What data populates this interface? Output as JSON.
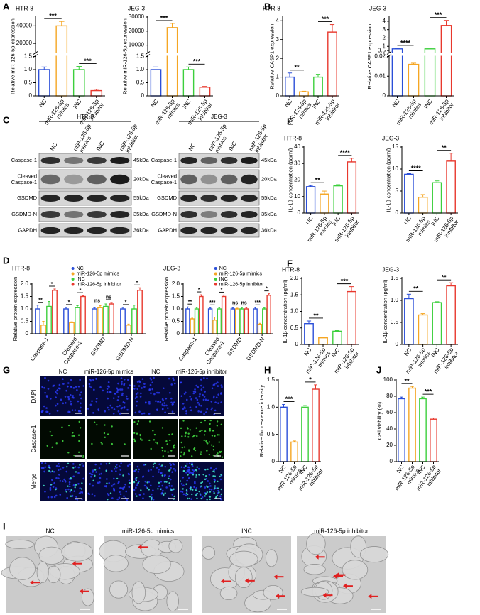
{
  "panel_labels": [
    "A",
    "B",
    "C",
    "D",
    "E",
    "F",
    "G",
    "H",
    "I",
    "J"
  ],
  "blot": {
    "cells": [
      "HTR-8",
      "JEG-3"
    ],
    "lanes": [
      "NC",
      "miR-126-5p mimics",
      "INC",
      "miR-126-5p inhibitor"
    ],
    "proteins": [
      "Caspase-1",
      "Cleaved Caspase-1",
      "GSDMD",
      "GSDMD-N",
      "GAPDH"
    ],
    "sizes": [
      "45kDa",
      "20kDa",
      "55kDa",
      "35kDa",
      "36kDa"
    ]
  },
  "fluorescence": {
    "columns": [
      "NC",
      "miR-126-5p mimics",
      "INC",
      "miR-126-5p inhibitor"
    ],
    "rows": [
      "DAPI",
      "Caspase-1",
      "Merge"
    ]
  },
  "micrographs": {
    "columns": [
      "NC",
      "miR-126-5p mimics",
      "INC",
      "miR-126-5p inhibitor"
    ]
  },
  "chart_data": [
    {
      "type": "bar",
      "title": "HTR-8",
      "y_label": "Relative miR-126-5p expression",
      "categories": [
        "NC",
        "miR-126-5p mimics",
        "INC",
        "miR-126-5p inhibitor"
      ],
      "values": [
        1.0,
        40000,
        1.0,
        0.2
      ],
      "errors": [
        0.1,
        5000,
        0.12,
        0.05
      ],
      "colors": [
        "#2b4fd8",
        "#f5a623",
        "#3ccf3c",
        "#e8382d"
      ],
      "broken_ylim": [
        [
          0,
          1.5
        ],
        [
          10000,
          50000
        ]
      ],
      "yticks": [
        0,
        0.5,
        {
          "value": 1,
          "label": "1.0"
        },
        1.5,
        20000,
        40000
      ],
      "annotations": [
        {
          "bars": [
            0,
            1
          ],
          "label": "***"
        },
        {
          "bars": [
            2,
            3
          ],
          "label": "***"
        }
      ]
    },
    {
      "type": "bar",
      "title": "JEG-3",
      "y_label": "Relative miR-126-5p expression",
      "categories": [
        "NC",
        "miR-126-5p mimics",
        "INC",
        "miR-126-5p inhibitor"
      ],
      "values": [
        1.0,
        22500,
        1.0,
        0.33
      ],
      "errors": [
        0.1,
        3000,
        0.1,
        0.03
      ],
      "colors": [
        "#2b4fd8",
        "#f5a623",
        "#3ccf3c",
        "#e8382d"
      ],
      "broken_ylim": [
        [
          0,
          1.5
        ],
        [
          5000,
          30000
        ]
      ],
      "yticks": [
        0,
        0.5,
        {
          "value": 1,
          "label": "1.0"
        },
        1.5,
        10000,
        20000,
        30000
      ],
      "annotations": [
        {
          "bars": [
            0,
            1
          ],
          "label": "***"
        },
        {
          "bars": [
            2,
            3
          ],
          "label": "***"
        }
      ]
    },
    {
      "type": "bar",
      "title": "HTR-8",
      "y_label": "Relative CASP1 expression",
      "categories": [
        "NC",
        "miR-126-5p mimics",
        "INC",
        "miR-126-5p inhibitor"
      ],
      "values": [
        1.0,
        0.22,
        1.0,
        3.4
      ],
      "errors": [
        0.22,
        0.03,
        0.15,
        0.4
      ],
      "colors": [
        "#2b4fd8",
        "#f5a623",
        "#3ccf3c",
        "#e8382d"
      ],
      "ylim": [
        0,
        4.2
      ],
      "yticks": [
        0,
        1,
        2,
        3,
        4
      ],
      "annotations": [
        {
          "bars": [
            0,
            1
          ],
          "label": "**"
        },
        {
          "bars": [
            2,
            3
          ],
          "label": "***"
        }
      ]
    },
    {
      "type": "bar",
      "title": "JEG-3",
      "y_label": "Relative CASP1 expression",
      "categories": [
        "NC",
        "miR-126-5p mimics",
        "INC",
        "miR-126-5p inhibitor"
      ],
      "values": [
        0.7,
        0.016,
        0.7,
        3.5
      ],
      "errors": [
        0.07,
        0.0006,
        0.1,
        0.6
      ],
      "colors": [
        "#2b4fd8",
        "#f5a623",
        "#3ccf3c",
        "#e8382d"
      ],
      "broken_ylim": [
        [
          0,
          0.02
        ],
        [
          0.3,
          4.5
        ]
      ],
      "yticks": [
        0,
        0.01,
        0.02,
        0.5,
        1,
        2,
        3,
        4
      ],
      "annotations": [
        {
          "bars": [
            0,
            1
          ],
          "label": "****"
        },
        {
          "bars": [
            2,
            3
          ],
          "label": "***"
        }
      ]
    },
    {
      "type": "bar",
      "title": "HTR-8",
      "y_label": "IL-18 concentration (pg/ml)",
      "categories": [
        "NC",
        "miR-126-5p mimics",
        "INC",
        "miR-126-5p inhibitor"
      ],
      "values": [
        16,
        11.5,
        16.5,
        31
      ],
      "errors": [
        0.7,
        1.8,
        0.7,
        2.2
      ],
      "colors": [
        "#2b4fd8",
        "#f5a623",
        "#3ccf3c",
        "#e8382d"
      ],
      "ylim": [
        0,
        40
      ],
      "yticks": [
        0,
        10,
        20,
        30,
        40
      ],
      "annotations": [
        {
          "bars": [
            0,
            1
          ],
          "label": "**"
        },
        {
          "bars": [
            2,
            3
          ],
          "label": "****"
        }
      ]
    },
    {
      "type": "bar",
      "title": "JEG-3",
      "y_label": "IL-18 concentration (pg/ml)",
      "categories": [
        "NC",
        "miR-126-5p mimics",
        "INC",
        "miR-126-5p inhibitor"
      ],
      "values": [
        8.8,
        3.6,
        6.9,
        11.8
      ],
      "errors": [
        0.15,
        0.6,
        0.4,
        1.8
      ],
      "colors": [
        "#2b4fd8",
        "#f5a623",
        "#3ccf3c",
        "#e8382d"
      ],
      "ylim": [
        0,
        15
      ],
      "yticks": [
        0,
        5,
        10,
        15
      ],
      "annotations": [
        {
          "bars": [
            0,
            1
          ],
          "label": "****"
        },
        {
          "bars": [
            2,
            3
          ],
          "label": "**"
        }
      ]
    },
    {
      "type": "grouped_bar",
      "title": "HTR-8",
      "y_label": "Relative protein expression",
      "categories": [
        "Caspase-1",
        "Cleaved Caspase-1",
        "GSDMD",
        "GSDMD-N"
      ],
      "series": [
        {
          "name": "NC",
          "color": "#2b4fd8",
          "values": [
            1.0,
            1.0,
            1.0,
            1.0
          ],
          "errors": [
            0.15,
            0.06,
            0.05,
            0.06
          ]
        },
        {
          "name": "miR-126-5p mimics",
          "color": "#f5a623",
          "values": [
            0.35,
            0.45,
            1.05,
            0.35
          ],
          "errors": [
            0.15,
            0.03,
            0.08,
            0.04
          ]
        },
        {
          "name": "INC",
          "color": "#3ccf3c",
          "values": [
            1.1,
            1.05,
            1.1,
            1.0
          ],
          "errors": [
            0.2,
            0.08,
            0.1,
            0.15
          ]
        },
        {
          "name": "miR-126-5p inhibitor",
          "color": "#e8382d",
          "values": [
            1.75,
            1.5,
            1.2,
            1.75
          ],
          "errors": [
            0.05,
            0.04,
            0.06,
            0.1
          ]
        }
      ],
      "ylim": [
        0,
        2.0
      ],
      "yticks": [
        0,
        0.5,
        {
          "value": 1,
          "label": "1.0"
        },
        1.5,
        {
          "value": 2,
          "label": "2.0"
        }
      ],
      "annotations": [
        {
          "category": 0,
          "bars": [
            0,
            1
          ],
          "label": "**"
        },
        {
          "category": 0,
          "bars": [
            2,
            3
          ],
          "label": "*"
        },
        {
          "category": 1,
          "bars": [
            0,
            1
          ],
          "label": "*"
        },
        {
          "category": 1,
          "bars": [
            2,
            3
          ],
          "label": "*"
        },
        {
          "category": 2,
          "bars": [
            0,
            1
          ],
          "label": "ns"
        },
        {
          "category": 2,
          "bars": [
            2,
            3
          ],
          "label": "ns"
        },
        {
          "category": 3,
          "bars": [
            0,
            1
          ],
          "label": "*"
        },
        {
          "category": 3,
          "bars": [
            2,
            3
          ],
          "label": "*"
        }
      ]
    },
    {
      "type": "grouped_bar",
      "title": "JEG-3",
      "y_label": "Relative protein expression",
      "categories": [
        "Caspase-1",
        "Cleaved Caspase-1",
        "GSDMD",
        "GSDMD-N"
      ],
      "series": [
        {
          "name": "NC",
          "color": "#2b4fd8",
          "values": [
            1.0,
            1.0,
            1.0,
            1.0
          ],
          "errors": [
            0.08,
            0.05,
            0.04,
            0.05
          ]
        },
        {
          "name": "miR-126-5p mimics",
          "color": "#f5a623",
          "values": [
            0.6,
            0.55,
            1.0,
            0.38
          ],
          "errors": [
            0.03,
            0.12,
            0.03,
            0.04
          ]
        },
        {
          "name": "INC",
          "color": "#3ccf3c",
          "values": [
            1.0,
            1.0,
            1.0,
            1.0
          ],
          "errors": [
            0.05,
            0.04,
            0.04,
            0.04
          ]
        },
        {
          "name": "miR-126-5p inhibitor",
          "color": "#e8382d",
          "values": [
            1.5,
            1.5,
            1.0,
            1.55
          ],
          "errors": [
            0.07,
            0.06,
            0.04,
            0.06
          ]
        }
      ],
      "ylim": [
        0,
        2.0
      ],
      "yticks": [
        0,
        0.5,
        {
          "value": 1,
          "label": "1.0"
        },
        1.5,
        {
          "value": 2,
          "label": "2.0"
        }
      ],
      "annotations": [
        {
          "category": 0,
          "bars": [
            0,
            1
          ],
          "label": "**"
        },
        {
          "category": 0,
          "bars": [
            2,
            3
          ],
          "label": "*"
        },
        {
          "category": 1,
          "bars": [
            0,
            1
          ],
          "label": "***"
        },
        {
          "category": 1,
          "bars": [
            2,
            3
          ],
          "label": "*"
        },
        {
          "category": 2,
          "bars": [
            0,
            1
          ],
          "label": "ns"
        },
        {
          "category": 2,
          "bars": [
            2,
            3
          ],
          "label": "ns"
        },
        {
          "category": 3,
          "bars": [
            0,
            1
          ],
          "label": "***"
        },
        {
          "category": 3,
          "bars": [
            2,
            3
          ],
          "label": "*"
        }
      ]
    },
    {
      "type": "bar",
      "title": "HTR-8",
      "y_label": "IL-1β concentration (pg/ml)",
      "categories": [
        "NC",
        "miR-126-5p mimics",
        "INC",
        "miR-126-5p inhibitor"
      ],
      "values": [
        0.63,
        0.2,
        0.4,
        1.6
      ],
      "errors": [
        0.08,
        0.02,
        0.02,
        0.15
      ],
      "colors": [
        "#2b4fd8",
        "#f5a623",
        "#3ccf3c",
        "#e8382d"
      ],
      "ylim": [
        0,
        2.0
      ],
      "yticks": [
        0,
        0.5,
        {
          "value": 1,
          "label": "1.0"
        },
        1.5,
        {
          "value": 2,
          "label": "2.0"
        }
      ],
      "annotations": [
        {
          "bars": [
            0,
            1
          ],
          "label": "**"
        },
        {
          "bars": [
            2,
            3
          ],
          "label": "***"
        }
      ]
    },
    {
      "type": "bar",
      "title": "JEG-3",
      "y_label": "IL-1β concentration (pg/ml)",
      "categories": [
        "NC",
        "miR-126-5p mimics",
        "INC",
        "miR-126-5p inhibitor"
      ],
      "values": [
        1.04,
        0.67,
        0.95,
        1.33
      ],
      "errors": [
        0.1,
        0.03,
        0.02,
        0.07
      ],
      "colors": [
        "#2b4fd8",
        "#f5a623",
        "#3ccf3c",
        "#e8382d"
      ],
      "ylim": [
        0,
        1.5
      ],
      "yticks": [
        0,
        0.5,
        {
          "value": 1,
          "label": "1.0"
        },
        1.5
      ],
      "annotations": [
        {
          "bars": [
            0,
            1
          ],
          "label": "**"
        },
        {
          "bars": [
            2,
            3
          ],
          "label": "**"
        }
      ]
    },
    {
      "type": "bar",
      "y_label": "Relative fluorescence intensity",
      "categories": [
        "NC",
        "miR-126-5p mimics",
        "INC",
        "miR-126-5p inhibitor"
      ],
      "values": [
        1.0,
        0.36,
        1.0,
        1.33
      ],
      "errors": [
        0.05,
        0.02,
        0.03,
        0.08
      ],
      "colors": [
        "#2b4fd8",
        "#f5a623",
        "#3ccf3c",
        "#e8382d"
      ],
      "ylim": [
        0,
        1.5
      ],
      "yticks": [
        0,
        0.5,
        {
          "value": 1,
          "label": "1.0"
        },
        1.5
      ],
      "annotations": [
        {
          "bars": [
            0,
            1
          ],
          "label": "***"
        },
        {
          "bars": [
            2,
            3
          ],
          "label": "*"
        }
      ]
    },
    {
      "type": "bar",
      "y_label": "Cell viability (%)",
      "categories": [
        "NC",
        "miR-126-5p mimics",
        "INC",
        "miR-126-5p inhibitor"
      ],
      "values": [
        77,
        90,
        77,
        52
      ],
      "errors": [
        2,
        2,
        2,
        1.5
      ],
      "colors": [
        "#2b4fd8",
        "#f5a623",
        "#3ccf3c",
        "#e8382d"
      ],
      "ylim": [
        0,
        100
      ],
      "yticks": [
        0,
        20,
        40,
        60,
        80,
        100
      ],
      "annotations": [
        {
          "bars": [
            0,
            1
          ],
          "label": "**"
        },
        {
          "bars": [
            2,
            3
          ],
          "label": "***"
        }
      ]
    }
  ]
}
